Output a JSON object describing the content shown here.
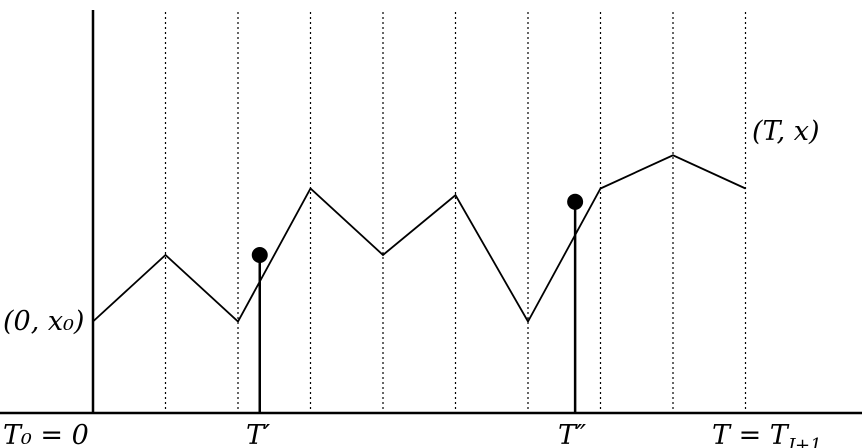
{
  "labels": {
    "start_point": "(0, x₀)",
    "end_point": "(T, x)",
    "t0": "T₀ = 0",
    "t_prime": "T′",
    "t_double_prime": "T″",
    "t_final": "T = T",
    "t_final_sub": "J+1"
  },
  "diagram": {
    "time_grid": [
      0,
      1,
      2,
      3,
      4,
      5,
      6,
      7,
      8,
      9
    ],
    "path": [
      {
        "t": 0.0,
        "x": 1.0
      },
      {
        "t": 1.0,
        "x": 2.0
      },
      {
        "t": 2.0,
        "x": 1.0
      },
      {
        "t": 3.0,
        "x": 3.0
      },
      {
        "t": 4.0,
        "x": 2.0
      },
      {
        "t": 5.0,
        "x": 2.9
      },
      {
        "t": 6.0,
        "x": 1.0
      },
      {
        "t": 7.0,
        "x": 3.0
      },
      {
        "t": 8.0,
        "x": 3.5
      },
      {
        "t": 9.0,
        "x": 3.0
      }
    ],
    "marked_points": [
      {
        "t": 2.3,
        "x": 2.0
      },
      {
        "t": 6.65,
        "x": 2.8
      }
    ],
    "x_range": [
      0,
      4
    ],
    "line_color": "#000000",
    "grid_style": "dotted"
  }
}
